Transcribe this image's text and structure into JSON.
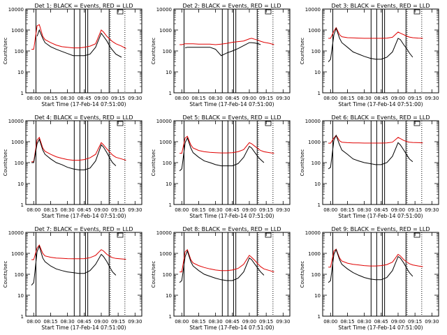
{
  "figure": {
    "background": "#ffffff",
    "series_colors": {
      "black": "#000000",
      "red": "#e00000"
    }
  },
  "chart_data": [
    {
      "type": "line",
      "title": "Det 1: BLACK = Events, RED = LLD",
      "xlabel": "Start Time (17-Feb-14 07:51:00)",
      "ylabel": "Counts/sec",
      "x_ticks": [
        "08:00",
        "08:15",
        "08:30",
        "08:45",
        "09:00",
        "09:15",
        "09:30"
      ],
      "y_ticks": [
        "1",
        "10",
        "100",
        "1000",
        "10000"
      ],
      "ylim": [
        1,
        10000
      ],
      "yscale": "log",
      "x": [
        "07:58",
        "08:00",
        "08:03",
        "08:05",
        "08:08",
        "08:10",
        "08:15",
        "08:20",
        "08:25",
        "08:30",
        "08:35",
        "08:40",
        "08:45",
        "08:50",
        "08:55",
        "09:00",
        "09:02",
        "09:05",
        "09:08",
        "09:10",
        "09:13",
        "09:18",
        "09:22"
      ],
      "series": [
        {
          "name": "BLACK",
          "values": [
            null,
            null,
            500,
            1000,
            400,
            250,
            160,
            120,
            95,
            75,
            60,
            60,
            60,
            70,
            150,
            700,
            500,
            300,
            150,
            110,
            70,
            50,
            null
          ]
        },
        {
          "name": "RED",
          "values": [
            120,
            120,
            1600,
            1800,
            500,
            350,
            250,
            190,
            160,
            150,
            140,
            140,
            150,
            170,
            220,
            1000,
            800,
            500,
            350,
            280,
            220,
            170,
            130
          ]
        }
      ],
      "vertical_solid_times": [
        "08:02",
        "08:36",
        "08:41",
        "08:46",
        "08:48",
        "09:07"
      ],
      "vertical_dotted_times": [
        "09:08",
        "09:21"
      ]
    },
    {
      "type": "line",
      "title": "Det 2: BLACK = Events, RED = LLD",
      "xlabel": "Start Time (17-Feb-14 07:51:00)",
      "ylabel": "Counts/sec",
      "x_ticks": [
        "08:00",
        "08:15",
        "08:30",
        "08:45",
        "09:00",
        "09:15",
        "09:30"
      ],
      "y_ticks": [
        "1",
        "10",
        "100",
        "1000",
        "10000"
      ],
      "ylim": [
        1,
        10000
      ],
      "yscale": "log",
      "x": [
        "07:58",
        "08:00",
        "08:03",
        "08:05",
        "08:08",
        "08:10",
        "08:15",
        "08:20",
        "08:25",
        "08:30",
        "08:35",
        "08:40",
        "08:45",
        "08:50",
        "08:55",
        "09:00",
        "09:02",
        "09:05",
        "09:08",
        "09:10",
        "09:13",
        "09:18",
        "09:22"
      ],
      "series": [
        {
          "name": "BLACK",
          "values": [
            null,
            null,
            140,
            150,
            150,
            150,
            150,
            150,
            150,
            120,
            60,
            80,
            100,
            130,
            180,
            250,
            250,
            240,
            220,
            200,
            null,
            null,
            null
          ]
        },
        {
          "name": "RED",
          "values": [
            200,
            200,
            220,
            220,
            220,
            220,
            210,
            210,
            210,
            200,
            210,
            230,
            260,
            280,
            300,
            380,
            400,
            360,
            320,
            290,
            260,
            230,
            200
          ]
        }
      ],
      "vertical_solid_times": [
        "08:02",
        "08:36",
        "08:41",
        "08:46",
        "08:48",
        "09:07"
      ],
      "vertical_dotted_times": [
        "09:08",
        "09:21"
      ]
    },
    {
      "type": "line",
      "title": "Det 3: BLACK = Events, RED = LLD",
      "xlabel": "Start Time (17-Feb-14 07:51:00)",
      "ylabel": "Counts/sec",
      "x_ticks": [
        "08:00",
        "08:15",
        "08:30",
        "08:45",
        "09:00",
        "09:15",
        "09:30"
      ],
      "y_ticks": [
        "1",
        "10",
        "100",
        "1000",
        "10000"
      ],
      "ylim": [
        1,
        10000
      ],
      "yscale": "log",
      "x": [
        "07:58",
        "08:00",
        "08:03",
        "08:05",
        "08:08",
        "08:10",
        "08:15",
        "08:20",
        "08:25",
        "08:30",
        "08:35",
        "08:40",
        "08:45",
        "08:50",
        "08:55",
        "09:00",
        "09:02",
        "09:05",
        "09:08",
        "09:10",
        "09:13",
        "09:18",
        "09:22"
      ],
      "series": [
        {
          "name": "BLACK",
          "values": [
            30,
            40,
            600,
            1200,
            400,
            250,
            150,
            90,
            70,
            55,
            45,
            40,
            40,
            50,
            90,
            400,
            350,
            200,
            120,
            80,
            50,
            null,
            null
          ]
        },
        {
          "name": "RED",
          "values": [
            400,
            400,
            900,
            1300,
            600,
            480,
            430,
            420,
            410,
            400,
            400,
            400,
            400,
            410,
            450,
            800,
            700,
            600,
            500,
            460,
            430,
            410,
            400
          ]
        }
      ],
      "vertical_solid_times": [
        "08:02",
        "08:36",
        "08:41",
        "08:46",
        "08:48",
        "09:07"
      ],
      "vertical_dotted_times": [
        "09:08",
        "09:21"
      ]
    },
    {
      "type": "line",
      "title": "Det 4: BLACK = Events, RED = LLD",
      "xlabel": "Start Time (17-Feb-14 07:51:00)",
      "ylabel": "Counts/sec",
      "x_ticks": [
        "08:00",
        "08:15",
        "08:30",
        "08:45",
        "09:00",
        "09:15",
        "09:30"
      ],
      "y_ticks": [
        "1",
        "10",
        "100",
        "1000",
        "10000"
      ],
      "ylim": [
        1,
        10000
      ],
      "yscale": "log",
      "x": [
        "07:58",
        "08:00",
        "08:03",
        "08:05",
        "08:08",
        "08:10",
        "08:15",
        "08:20",
        "08:25",
        "08:30",
        "08:35",
        "08:40",
        "08:45",
        "08:50",
        "08:55",
        "09:00",
        "09:02",
        "09:05",
        "09:08",
        "09:10",
        "09:13",
        "09:18",
        "09:22"
      ],
      "series": [
        {
          "name": "BLACK",
          "values": [
            100,
            100,
            800,
            1300,
            400,
            250,
            150,
            100,
            80,
            60,
            50,
            45,
            45,
            55,
            120,
            700,
            550,
            300,
            150,
            100,
            70,
            null,
            null
          ]
        },
        {
          "name": "RED",
          "values": [
            110,
            110,
            1200,
            1600,
            500,
            350,
            250,
            190,
            160,
            140,
            130,
            130,
            140,
            170,
            250,
            900,
            700,
            450,
            300,
            230,
            180,
            150,
            130
          ]
        }
      ],
      "vertical_solid_times": [
        "08:02",
        "08:36",
        "08:41",
        "08:46",
        "08:48",
        "09:07"
      ],
      "vertical_dotted_times": [
        "09:08",
        "09:21"
      ]
    },
    {
      "type": "line",
      "title": "Det 5: BLACK = Events, RED = LLD",
      "xlabel": "Start Time (17-Feb-14 07:51:00)",
      "ylabel": "Counts/sec",
      "x_ticks": [
        "08:00",
        "08:15",
        "08:30",
        "08:45",
        "09:00",
        "09:15",
        "09:30"
      ],
      "y_ticks": [
        "1",
        "10",
        "100",
        "1000",
        "10000"
      ],
      "ylim": [
        1,
        10000
      ],
      "yscale": "log",
      "x": [
        "07:58",
        "08:00",
        "08:03",
        "08:05",
        "08:08",
        "08:10",
        "08:15",
        "08:20",
        "08:25",
        "08:30",
        "08:35",
        "08:40",
        "08:45",
        "08:50",
        "08:55",
        "09:00",
        "09:02",
        "09:05",
        "09:08",
        "09:10",
        "09:13",
        "09:18",
        "09:22"
      ],
      "series": [
        {
          "name": "BLACK",
          "values": [
            40,
            50,
            900,
            1500,
            500,
            300,
            180,
            120,
            100,
            80,
            70,
            70,
            70,
            90,
            180,
            600,
            500,
            300,
            180,
            140,
            100,
            null,
            null
          ]
        },
        {
          "name": "RED",
          "values": [
            280,
            280,
            1500,
            1800,
            700,
            500,
            380,
            330,
            310,
            300,
            290,
            290,
            300,
            330,
            420,
            900,
            800,
            600,
            450,
            380,
            330,
            300,
            280
          ]
        }
      ],
      "vertical_solid_times": [
        "08:02",
        "08:36",
        "08:41",
        "08:46",
        "08:48",
        "09:07"
      ],
      "vertical_dotted_times": [
        "09:08",
        "09:21"
      ]
    },
    {
      "type": "line",
      "title": "Det 6: BLACK = Events, RED = LLD",
      "xlabel": "Start Time (17-Feb-14 07:51:00)",
      "ylabel": "Counts/sec",
      "x_ticks": [
        "08:00",
        "08:15",
        "08:30",
        "08:45",
        "09:00",
        "09:15",
        "09:30"
      ],
      "y_ticks": [
        "1",
        "10",
        "100",
        "1000",
        "10000"
      ],
      "ylim": [
        1,
        10000
      ],
      "yscale": "log",
      "x": [
        "07:58",
        "08:00",
        "08:03",
        "08:05",
        "08:08",
        "08:10",
        "08:15",
        "08:20",
        "08:25",
        "08:30",
        "08:35",
        "08:40",
        "08:45",
        "08:50",
        "08:55",
        "09:00",
        "09:02",
        "09:05",
        "09:08",
        "09:10",
        "09:13",
        "09:18",
        "09:22"
      ],
      "series": [
        {
          "name": "BLACK",
          "values": [
            50,
            60,
            1200,
            2000,
            700,
            400,
            250,
            150,
            120,
            100,
            90,
            80,
            80,
            100,
            200,
            900,
            700,
            400,
            220,
            150,
            110,
            null,
            null
          ]
        },
        {
          "name": "RED",
          "values": [
            850,
            850,
            1500,
            2000,
            1100,
            950,
            900,
            880,
            870,
            860,
            860,
            860,
            860,
            880,
            950,
            1600,
            1400,
            1150,
            1000,
            950,
            920,
            900,
            880
          ]
        }
      ],
      "vertical_solid_times": [
        "08:02",
        "08:36",
        "08:41",
        "08:46",
        "08:48",
        "09:07"
      ],
      "vertical_dotted_times": [
        "09:08",
        "09:21"
      ]
    },
    {
      "type": "line",
      "title": "Det 7: BLACK = Events, RED = LLD",
      "xlabel": "Start Time (17-Feb-14 07:51:00)",
      "ylabel": "Counts/sec",
      "x_ticks": [
        "08:00",
        "08:15",
        "08:30",
        "08:45",
        "09:00",
        "09:15",
        "09:30"
      ],
      "y_ticks": [
        "1",
        "10",
        "100",
        "1000",
        "10000"
      ],
      "ylim": [
        1,
        10000
      ],
      "yscale": "log",
      "x": [
        "07:58",
        "08:00",
        "08:03",
        "08:05",
        "08:08",
        "08:10",
        "08:15",
        "08:20",
        "08:25",
        "08:30",
        "08:35",
        "08:40",
        "08:45",
        "08:50",
        "08:55",
        "09:00",
        "09:02",
        "09:05",
        "09:08",
        "09:10",
        "09:13",
        "09:18",
        "09:22"
      ],
      "series": [
        {
          "name": "BLACK",
          "values": [
            30,
            40,
            1200,
            2200,
            600,
            400,
            250,
            180,
            150,
            130,
            120,
            110,
            110,
            150,
            300,
            900,
            700,
            400,
            200,
            130,
            90,
            null,
            null
          ]
        },
        {
          "name": "RED",
          "values": [
            500,
            500,
            1800,
            2500,
            1000,
            750,
            650,
            600,
            580,
            560,
            550,
            550,
            560,
            620,
            800,
            1500,
            1300,
            900,
            700,
            620,
            570,
            540,
            520
          ]
        }
      ],
      "vertical_solid_times": [
        "08:02",
        "08:36",
        "08:41",
        "08:46",
        "08:48",
        "09:07"
      ],
      "vertical_dotted_times": [
        "09:08",
        "09:21"
      ]
    },
    {
      "type": "line",
      "title": "Det 8: BLACK = Events, RED = LLD",
      "xlabel": "Start Time (17-Feb-14 07:51:00)",
      "ylabel": "Counts/sec",
      "x_ticks": [
        "08:00",
        "08:15",
        "08:30",
        "08:45",
        "09:00",
        "09:15",
        "09:30"
      ],
      "y_ticks": [
        "1",
        "10",
        "100",
        "1000",
        "10000"
      ],
      "ylim": [
        1,
        10000
      ],
      "yscale": "log",
      "x": [
        "07:58",
        "08:00",
        "08:03",
        "08:05",
        "08:08",
        "08:10",
        "08:15",
        "08:20",
        "08:25",
        "08:30",
        "08:35",
        "08:40",
        "08:45",
        "08:50",
        "08:55",
        "09:00",
        "09:02",
        "09:05",
        "09:08",
        "09:10",
        "09:13",
        "09:18",
        "09:22"
      ],
      "series": [
        {
          "name": "BLACK",
          "values": [
            40,
            50,
            700,
            1300,
            400,
            250,
            150,
            100,
            80,
            65,
            55,
            50,
            50,
            65,
            130,
            600,
            500,
            300,
            180,
            130,
            90,
            null,
            null
          ]
        },
        {
          "name": "RED",
          "values": [
            130,
            130,
            1200,
            1500,
            500,
            350,
            260,
            210,
            180,
            160,
            150,
            150,
            160,
            190,
            300,
            800,
            650,
            450,
            300,
            230,
            180,
            150,
            130
          ]
        }
      ],
      "vertical_solid_times": [
        "08:02",
        "08:36",
        "08:41",
        "08:46",
        "08:48",
        "09:07"
      ],
      "vertical_dotted_times": [
        "09:08",
        "09:21"
      ]
    },
    {
      "type": "line",
      "title": "Det 9: BLACK = Events, RED = LLD",
      "xlabel": "Start Time (17-Feb-14 07:51:00)",
      "ylabel": "Counts/sec",
      "x_ticks": [
        "08:00",
        "08:15",
        "08:30",
        "08:45",
        "09:00",
        "09:15",
        "09:30"
      ],
      "y_ticks": [
        "1",
        "10",
        "100",
        "1000",
        "10000"
      ],
      "ylim": [
        1,
        10000
      ],
      "yscale": "log",
      "x": [
        "07:58",
        "08:00",
        "08:03",
        "08:05",
        "08:08",
        "08:10",
        "08:15",
        "08:20",
        "08:25",
        "08:30",
        "08:35",
        "08:40",
        "08:45",
        "08:50",
        "08:55",
        "09:00",
        "09:02",
        "09:05",
        "09:08",
        "09:10",
        "09:13",
        "09:18",
        "09:22"
      ],
      "series": [
        {
          "name": "BLACK",
          "values": [
            40,
            50,
            900,
            1500,
            500,
            300,
            180,
            120,
            90,
            70,
            60,
            55,
            55,
            70,
            150,
            700,
            600,
            350,
            180,
            120,
            80,
            null,
            null
          ]
        },
        {
          "name": "RED",
          "values": [
            220,
            220,
            1300,
            1600,
            600,
            430,
            340,
            300,
            280,
            260,
            250,
            250,
            260,
            290,
            380,
            900,
            750,
            500,
            380,
            320,
            280,
            250,
            230
          ]
        }
      ],
      "vertical_solid_times": [
        "08:02",
        "08:36",
        "08:41",
        "08:46",
        "08:48",
        "09:07"
      ],
      "vertical_dotted_times": [
        "09:08",
        "09:21"
      ]
    }
  ]
}
